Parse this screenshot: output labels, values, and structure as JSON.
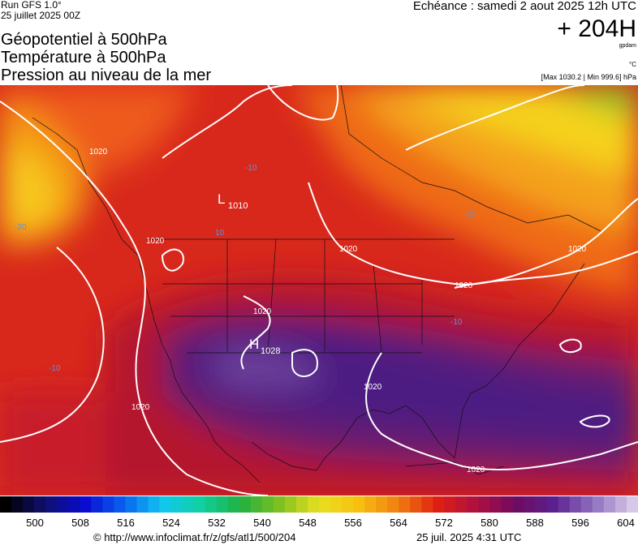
{
  "header": {
    "run": "Run GFS 1.0°",
    "run_date": "25 juillet 2025 00Z",
    "titles": [
      "Géopotentiel à 500hPa",
      "Température à 500hPa",
      "Pression au niveau de la mer"
    ],
    "valid": "Echéance : samedi 2 aout 2025 12h UTC",
    "lead": "+ 204H",
    "unit_geo": "gpdam",
    "unit_temp": "°C",
    "pressure_range": "[Max 1030.2 | Min 999.6] hPa"
  },
  "map": {
    "labels": [
      "L",
      "1010",
      "H",
      "1028",
      "1020",
      "1020",
      "1020",
      "1020",
      "1020",
      "1020",
      "1020",
      "1020",
      "1020",
      "-10",
      "-10",
      "-10",
      "-20",
      "-20",
      "10"
    ]
  },
  "colorbar": {
    "ticks": [
      500,
      508,
      516,
      524,
      532,
      540,
      548,
      556,
      564,
      572,
      580,
      588,
      596,
      604
    ]
  },
  "footer": {
    "source": "© http://www.infoclimat.fr/z/gfs/atl1/500/204",
    "generated": "25 juil. 2025  4:31 UTC"
  }
}
